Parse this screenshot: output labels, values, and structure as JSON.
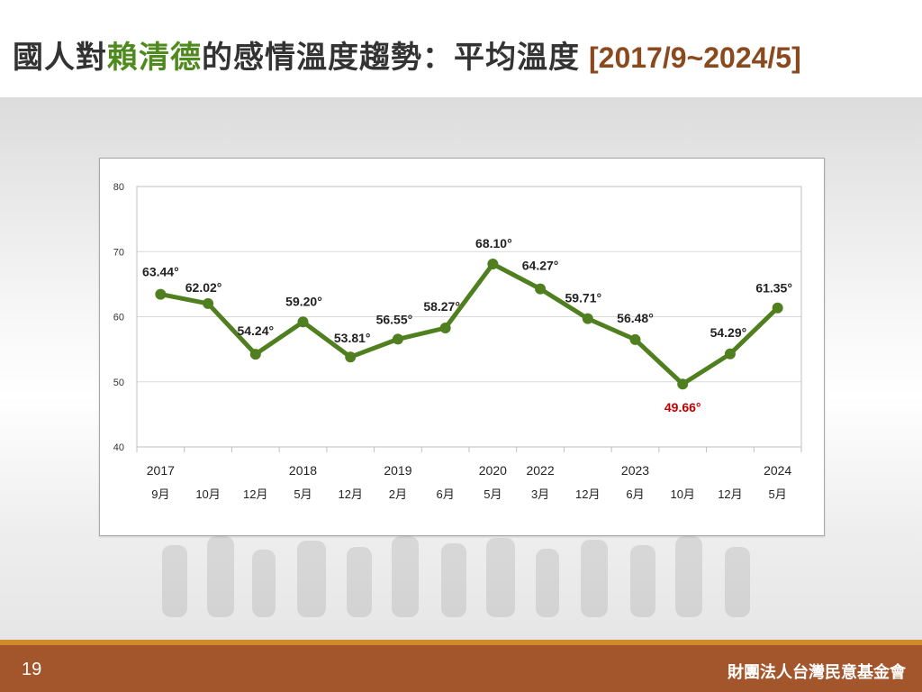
{
  "slide": {
    "title_prefix": "國人對",
    "title_highlight": "賴清德",
    "title_suffix": "的感情溫度趨勢：平均溫度",
    "title_range": "[2017/9~2024/5]",
    "page_number": "19",
    "organization": "財團法人台灣民意基金會"
  },
  "colors": {
    "line": "#4f7f1f",
    "highlight_label": "#c00000",
    "title_highlight": "#4f8a1e",
    "title_range": "#8a4a1e",
    "footer": "#a3552b",
    "footer_stripe": "#d08a2a"
  },
  "chart_data": {
    "type": "line",
    "title": "",
    "xlabel": "",
    "ylabel": "",
    "ylim": [
      40,
      80
    ],
    "yticks": [
      40,
      50,
      60,
      70,
      80
    ],
    "grid": true,
    "points": [
      {
        "year": "2017",
        "month": "9月",
        "value": 63.44,
        "label": "63.44°"
      },
      {
        "year": "",
        "month": "10月",
        "value": 62.02,
        "label": "62.02°"
      },
      {
        "year": "",
        "month": "12月",
        "value": 54.24,
        "label": "54.24°"
      },
      {
        "year": "2018",
        "month": "5月",
        "value": 59.2,
        "label": "59.20°"
      },
      {
        "year": "",
        "month": "12月",
        "value": 53.81,
        "label": "53.81°"
      },
      {
        "year": "2019",
        "month": "2月",
        "value": 56.55,
        "label": "56.55°"
      },
      {
        "year": "",
        "month": "6月",
        "value": 58.27,
        "label": "58.27°"
      },
      {
        "year": "2020",
        "month": "5月",
        "value": 68.1,
        "label": "68.10°"
      },
      {
        "year": "2022",
        "month": "3月",
        "value": 64.27,
        "label": "64.27°"
      },
      {
        "year": "",
        "month": "12月",
        "value": 59.71,
        "label": "59.71°"
      },
      {
        "year": "2023",
        "month": "6月",
        "value": 56.48,
        "label": "56.48°"
      },
      {
        "year": "",
        "month": "10月",
        "value": 49.66,
        "label": "49.66°",
        "highlight": true
      },
      {
        "year": "",
        "month": "12月",
        "value": 54.29,
        "label": "54.29°"
      },
      {
        "year": "2024",
        "month": "5月",
        "value": 61.35,
        "label": "61.35°"
      }
    ]
  }
}
